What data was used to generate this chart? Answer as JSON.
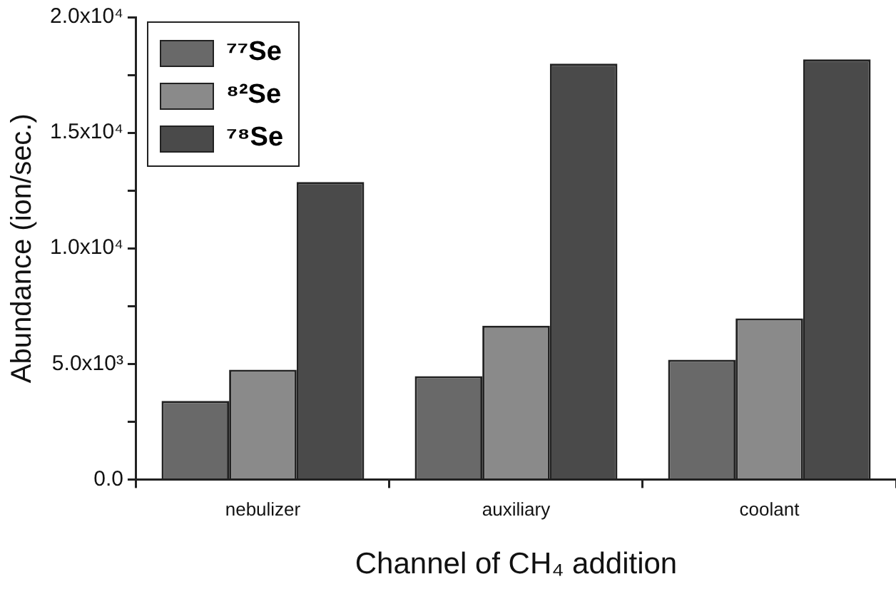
{
  "chart_data": {
    "type": "bar",
    "xlabel": "Channel of CH₄ addition",
    "ylabel": "Abundance (ion/sec.)",
    "categories": [
      "nebulizer",
      "auxiliary",
      "coolant"
    ],
    "series": [
      {
        "name": "⁷⁷Se",
        "color": "#696969",
        "values": [
          3400,
          4470,
          5180
        ]
      },
      {
        "name": "⁸²Se",
        "color": "#8a8a8a",
        "values": [
          4750,
          6650,
          6970
        ]
      },
      {
        "name": "⁷⁸Se",
        "color": "#4a4a4a",
        "values": [
          12870,
          17990,
          18170
        ]
      }
    ],
    "ylim": [
      0,
      20000
    ],
    "yticks": [
      {
        "value": 0,
        "label": "0.0"
      },
      {
        "value": 2500,
        "label": null
      },
      {
        "value": 5000,
        "label": "5.0x10³"
      },
      {
        "value": 7500,
        "label": null
      },
      {
        "value": 10000,
        "label": "1.0x10⁴"
      },
      {
        "value": 12500,
        "label": null
      },
      {
        "value": 15000,
        "label": "1.5x10⁴"
      },
      {
        "value": 17500,
        "label": null
      },
      {
        "value": 20000,
        "label": "2.0x10⁴"
      }
    ],
    "grid": false,
    "legend": "top left"
  }
}
